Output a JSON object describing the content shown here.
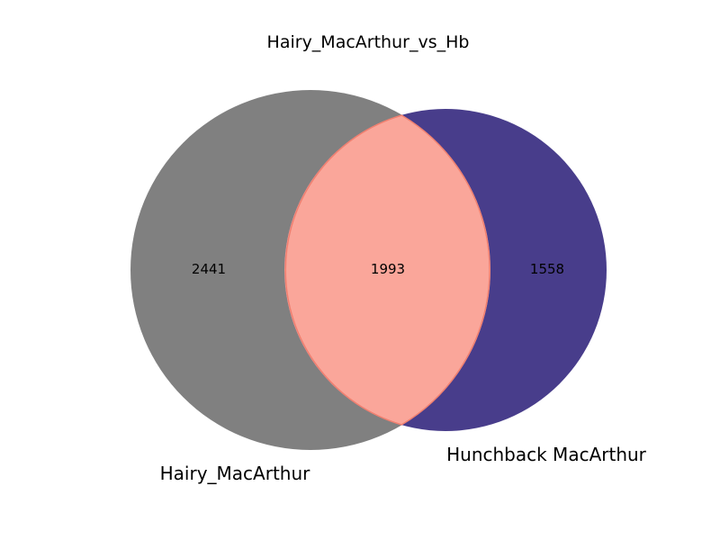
{
  "title": "Hairy_MacArthur_vs_Hb",
  "sets": [
    {
      "label": "Hairy_MacArthur",
      "only_count": "2441",
      "color": "#808080"
    },
    {
      "label": "Hunchback MacArthur",
      "only_count": "1558",
      "color": "#483D8B"
    }
  ],
  "intersection": {
    "count": "1993",
    "color": "#FAA69A",
    "edge_color": "#F08070"
  }
}
